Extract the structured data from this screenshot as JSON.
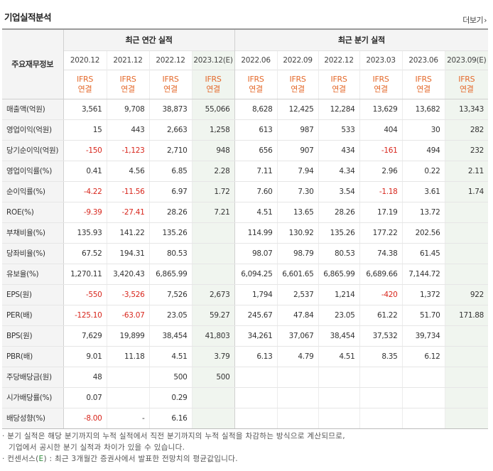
{
  "header": {
    "title": "기업실적분석",
    "more_label": "더보기"
  },
  "table": {
    "label_header": "주요재무정보",
    "group_annual": "최근 연간 실적",
    "group_quarter": "최근 분기 실적",
    "periods": [
      "2020.12",
      "2021.12",
      "2022.12",
      "2023.12(E)",
      "2022.06",
      "2022.09",
      "2022.12",
      "2023.03",
      "2023.06",
      "2023.09(E)"
    ],
    "ifrs_top": "IFRS",
    "ifrs_bottom": "연결",
    "rows": [
      {
        "label": "매출액(억원)",
        "values": [
          "3,561",
          "9,708",
          "38,873",
          "55,066",
          "8,628",
          "12,425",
          "12,284",
          "13,629",
          "13,682",
          "13,343"
        ]
      },
      {
        "label": "영업이익(억원)",
        "values": [
          "15",
          "443",
          "2,663",
          "1,258",
          "613",
          "987",
          "533",
          "404",
          "30",
          "282"
        ]
      },
      {
        "label": "당기순이익(억원)",
        "values": [
          "-150",
          "-1,123",
          "2,710",
          "948",
          "656",
          "907",
          "434",
          "-161",
          "494",
          "232"
        ]
      },
      {
        "label": "영업이익률(%)",
        "values": [
          "0.41",
          "4.56",
          "6.85",
          "2.28",
          "7.11",
          "7.94",
          "4.34",
          "2.96",
          "0.22",
          "2.11"
        ]
      },
      {
        "label": "순이익률(%)",
        "values": [
          "-4.22",
          "-11.56",
          "6.97",
          "1.72",
          "7.60",
          "7.30",
          "3.54",
          "-1.18",
          "3.61",
          "1.74"
        ]
      },
      {
        "label": "ROE(%)",
        "values": [
          "-9.39",
          "-27.41",
          "28.26",
          "7.21",
          "4.51",
          "13.65",
          "28.26",
          "17.19",
          "13.72",
          ""
        ]
      },
      {
        "label": "부채비율(%)",
        "values": [
          "135.93",
          "141.22",
          "135.26",
          "",
          "114.99",
          "130.92",
          "135.26",
          "177.22",
          "202.56",
          ""
        ]
      },
      {
        "label": "당좌비율(%)",
        "values": [
          "67.52",
          "194.31",
          "80.53",
          "",
          "98.07",
          "98.79",
          "80.53",
          "74.38",
          "61.45",
          ""
        ]
      },
      {
        "label": "유보율(%)",
        "values": [
          "1,270.11",
          "3,420.43",
          "6,865.99",
          "",
          "6,094.25",
          "6,601.65",
          "6,865.99",
          "6,689.66",
          "7,144.72",
          ""
        ]
      },
      {
        "label": "EPS(원)",
        "values": [
          "-550",
          "-3,526",
          "7,526",
          "2,673",
          "1,794",
          "2,537",
          "1,214",
          "-420",
          "1,372",
          "922"
        ]
      },
      {
        "label": "PER(배)",
        "values": [
          "-125.10",
          "-63.07",
          "23.05",
          "59.27",
          "245.67",
          "47.84",
          "23.05",
          "61.22",
          "51.70",
          "171.88"
        ]
      },
      {
        "label": "BPS(원)",
        "values": [
          "7,629",
          "19,899",
          "38,454",
          "41,803",
          "34,261",
          "37,067",
          "38,454",
          "37,532",
          "39,734",
          ""
        ]
      },
      {
        "label": "PBR(배)",
        "values": [
          "9.01",
          "11.18",
          "4.51",
          "3.79",
          "6.13",
          "4.79",
          "4.51",
          "8.35",
          "6.12",
          ""
        ]
      },
      {
        "label": "주당배당금(원)",
        "values": [
          "48",
          "",
          "500",
          "500",
          "",
          "",
          "",
          "",
          "",
          ""
        ]
      },
      {
        "label": "시가배당률(%)",
        "values": [
          "0.07",
          "",
          "0.29",
          "",
          "",
          "",
          "",
          "",
          "",
          ""
        ]
      },
      {
        "label": "배당성향(%)",
        "values": [
          "-8.00",
          "-",
          "6.16",
          "",
          "",
          "",
          "",
          "",
          "",
          ""
        ]
      }
    ]
  },
  "notes": {
    "line1": "· 분기 실적은 해당 분기까지의 누적 실적에서 직전 분기까지의 누적 실적을 차감하는 방식으로 계산되므로,",
    "line2": "기업에서 공시한 분기 실적과 차이가 있을 수 있습니다.",
    "line3_pre": "· 컨센서스(",
    "line3_e": "E",
    "line3_post": ") : 최근 3개월간 증권사에서 발표한 전망치의 평균값입니다."
  },
  "colors": {
    "negative": "#d8261c",
    "ifrs": "#e46a2c",
    "estimate_bg": "#f0f5ef",
    "header_bg": "#f4f4f4"
  }
}
